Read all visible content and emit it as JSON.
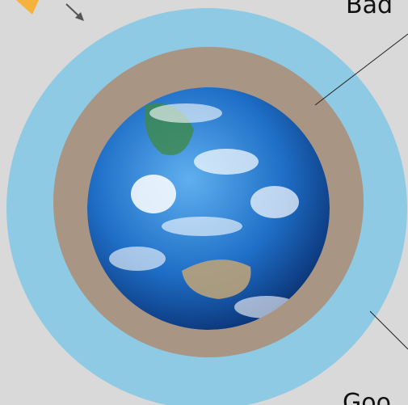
{
  "labels": {
    "top": "Bad",
    "bottom": "Goo"
  }
}
